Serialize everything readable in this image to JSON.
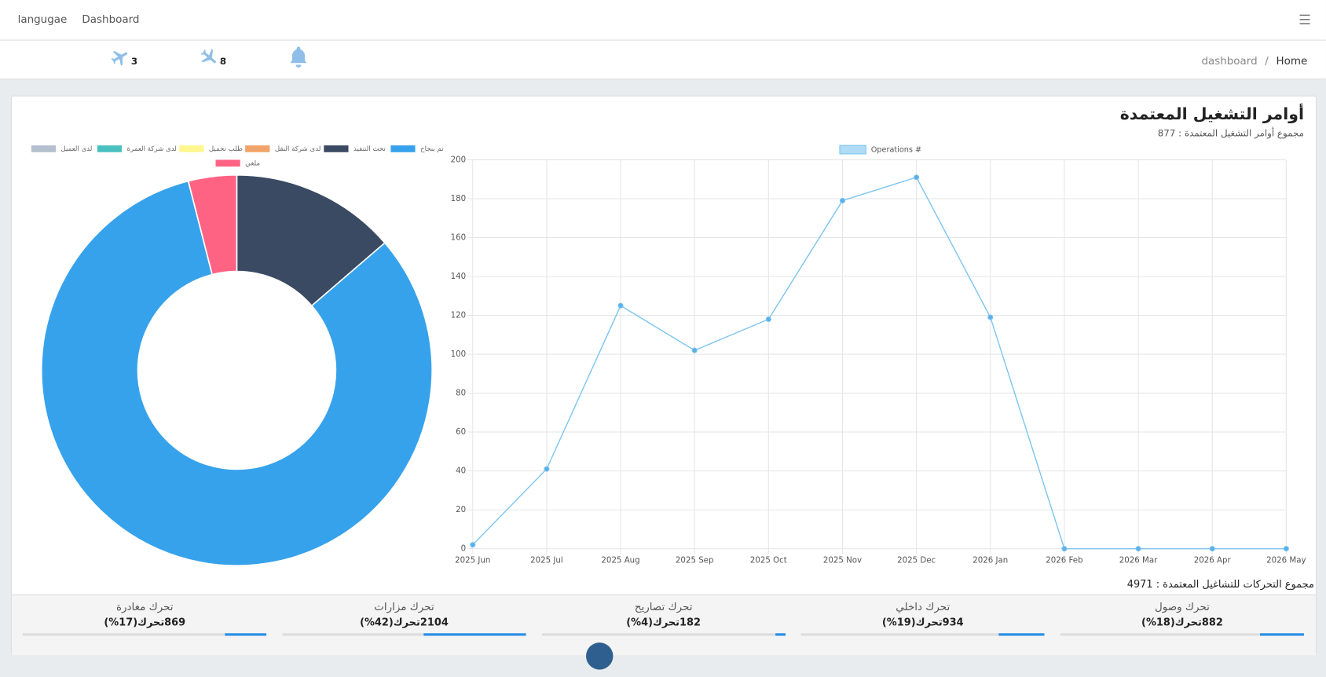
{
  "navbar": {
    "links": [
      "langugae",
      "Dashboard"
    ]
  },
  "toolbar": {
    "counts": [
      3,
      8
    ]
  },
  "breadcrumb": [
    "dashboard",
    "Home"
  ],
  "card": {
    "title": "أوامر التشغيل المعتمدة",
    "subtitle": "مجموع أوامر التشغيل المعتمدة : 877"
  },
  "chart_data": [
    {
      "type": "doughnut",
      "categories": [
        "تحت التنفيذ",
        "تم بنجاح",
        "لدى شركة النقل",
        "طلب تحميل",
        "لدى شركة العمرة",
        "لدى العميل",
        "ملغي"
      ],
      "values": [
        120,
        722,
        0,
        0,
        0,
        0,
        35
      ],
      "colors": [
        "#3b4a63",
        "#36a2eb",
        "#f0a46a",
        "#fff68f",
        "#4bc0c0",
        "#b4bfcd",
        "#ff6384"
      ]
    },
    {
      "type": "line",
      "categories": [
        "2025 Jun",
        "2025 Jul",
        "2025 Aug",
        "2025 Sep",
        "2025 Oct",
        "2025 Nov",
        "2025 Dec",
        "2026 Jan",
        "2026 Feb",
        "2026 Mar",
        "2026 Apr",
        "2026 May"
      ],
      "series": [
        {
          "name": "Operations #",
          "color": "#7cc4f0",
          "values": [
            2,
            41,
            125,
            102,
            118,
            179,
            191,
            119,
            0,
            0,
            0,
            0
          ]
        }
      ],
      "ylim": [
        0,
        200
      ],
      "yticks": [
        0,
        20,
        40,
        60,
        80,
        100,
        120,
        140,
        160,
        180,
        200
      ],
      "grid": true
    }
  ],
  "movements": {
    "total_label": "مجموع التحركات للتشاغيل المعتمدة : 4971",
    "items": [
      {
        "label": "تحرك وصول",
        "value_label": "882تحرك(18%)",
        "percent": 18
      },
      {
        "label": "تحرك داخلي",
        "value_label": "934تحرك(19%)",
        "percent": 19
      },
      {
        "label": "تحرك تصاريح",
        "value_label": "182تحرك(4%)",
        "percent": 4
      },
      {
        "label": "تحرك مزارات",
        "value_label": "2104تحرك(42%)",
        "percent": 42
      },
      {
        "label": "تحرك مغادرة",
        "value_label": "869تحرك(17%)",
        "percent": 17
      }
    ]
  }
}
